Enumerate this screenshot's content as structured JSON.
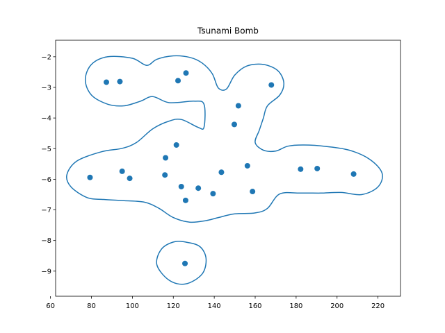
{
  "chart_data": {
    "type": "scatter",
    "title": "Tsunami Bomb",
    "xlabel": "",
    "ylabel": "",
    "xlim": [
      62.5,
      231
    ],
    "ylim": [
      -9.82,
      -1.46
    ],
    "xticks": [
      60,
      80,
      100,
      120,
      140,
      160,
      180,
      200,
      220
    ],
    "yticks": [
      -9,
      -8,
      -7,
      -6,
      -5,
      -4,
      -3,
      -2
    ],
    "grid": false,
    "series": [
      {
        "color": "#1f77b4",
        "points": [
          {
            "x": 87.3,
            "y": -2.83
          },
          {
            "x": 93.9,
            "y": -2.81
          },
          {
            "x": 122.3,
            "y": -2.78
          },
          {
            "x": 126.2,
            "y": -2.53
          },
          {
            "x": 167.9,
            "y": -2.92
          },
          {
            "x": 151.8,
            "y": -3.6
          },
          {
            "x": 149.8,
            "y": -4.21
          },
          {
            "x": 121.5,
            "y": -4.88
          },
          {
            "x": 116.2,
            "y": -5.3
          },
          {
            "x": 79.3,
            "y": -5.94
          },
          {
            "x": 95.0,
            "y": -5.74
          },
          {
            "x": 98.7,
            "y": -5.97
          },
          {
            "x": 115.9,
            "y": -5.86
          },
          {
            "x": 123.9,
            "y": -6.24
          },
          {
            "x": 126.0,
            "y": -6.69
          },
          {
            "x": 132.2,
            "y": -6.29
          },
          {
            "x": 139.4,
            "y": -6.47
          },
          {
            "x": 143.5,
            "y": -5.77
          },
          {
            "x": 156.2,
            "y": -5.56
          },
          {
            "x": 158.7,
            "y": -6.4
          },
          {
            "x": 182.2,
            "y": -5.67
          },
          {
            "x": 190.3,
            "y": -5.65
          },
          {
            "x": 208.1,
            "y": -5.83
          },
          {
            "x": 125.7,
            "y": -8.75
          }
        ]
      }
    ],
    "contours": [
      {
        "color": "#1f77b4",
        "path": [
          [
            88,
            -2.0
          ],
          [
            100,
            -2.05
          ],
          [
            107,
            -2.28
          ],
          [
            112,
            -2.08
          ],
          [
            120,
            -1.97
          ],
          [
            128,
            -2.02
          ],
          [
            134,
            -2.2
          ],
          [
            139,
            -2.55
          ],
          [
            142,
            -3.02
          ],
          [
            146,
            -3.05
          ],
          [
            150,
            -2.6
          ],
          [
            156,
            -2.3
          ],
          [
            164,
            -2.25
          ],
          [
            171,
            -2.45
          ],
          [
            174,
            -2.85
          ],
          [
            172,
            -3.25
          ],
          [
            166,
            -3.6
          ],
          [
            164,
            -4.0
          ],
          [
            162,
            -4.4
          ],
          [
            160,
            -4.8
          ],
          [
            164,
            -5.05
          ],
          [
            170,
            -5.08
          ],
          [
            176,
            -4.92
          ],
          [
            184,
            -4.88
          ],
          [
            195,
            -4.93
          ],
          [
            206,
            -5.05
          ],
          [
            216,
            -5.35
          ],
          [
            222,
            -5.8
          ],
          [
            220,
            -6.25
          ],
          [
            212,
            -6.5
          ],
          [
            202,
            -6.43
          ],
          [
            192,
            -6.45
          ],
          [
            182,
            -6.45
          ],
          [
            172,
            -6.48
          ],
          [
            166,
            -6.95
          ],
          [
            160,
            -7.1
          ],
          [
            150,
            -7.13
          ],
          [
            142,
            -7.25
          ],
          [
            136,
            -7.35
          ],
          [
            128,
            -7.4
          ],
          [
            120,
            -7.25
          ],
          [
            113,
            -6.95
          ],
          [
            106,
            -6.75
          ],
          [
            96,
            -6.7
          ],
          [
            86,
            -6.66
          ],
          [
            78,
            -6.6
          ],
          [
            70,
            -6.25
          ],
          [
            68,
            -5.85
          ],
          [
            73,
            -5.4
          ],
          [
            85,
            -5.1
          ],
          [
            95,
            -4.99
          ],
          [
            102,
            -4.8
          ],
          [
            110,
            -4.35
          ],
          [
            118,
            -4.1
          ],
          [
            124,
            -4.05
          ],
          [
            132,
            -4.3
          ],
          [
            135,
            -4.3
          ],
          [
            135,
            -3.55
          ],
          [
            130,
            -3.45
          ],
          [
            118,
            -3.5
          ],
          [
            110,
            -3.3
          ],
          [
            104,
            -3.45
          ],
          [
            96,
            -3.6
          ],
          [
            88,
            -3.55
          ],
          [
            80,
            -3.25
          ],
          [
            77,
            -2.75
          ],
          [
            80,
            -2.25
          ],
          [
            88,
            -2.0
          ]
        ]
      },
      {
        "color": "#1f77b4",
        "path": [
          [
            126,
            -8.05
          ],
          [
            133,
            -8.2
          ],
          [
            136,
            -8.6
          ],
          [
            134,
            -9.1
          ],
          [
            126,
            -9.42
          ],
          [
            118,
            -9.3
          ],
          [
            112,
            -8.8
          ],
          [
            114,
            -8.3
          ],
          [
            120,
            -8.05
          ],
          [
            126,
            -8.05
          ]
        ]
      }
    ]
  }
}
